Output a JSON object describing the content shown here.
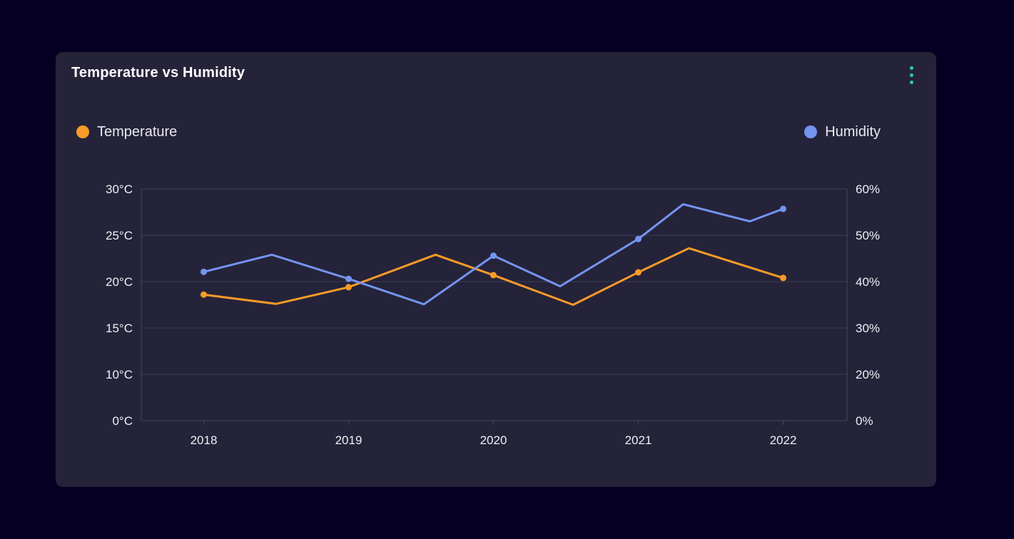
{
  "card": {
    "title": "Temperature vs Humidity",
    "menu_icon": "kebab-menu-icon"
  },
  "legend": {
    "items": [
      {
        "label": "Temperature",
        "color": "#f89b28",
        "side": "left"
      },
      {
        "label": "Humidity",
        "color": "#7494f0",
        "side": "right"
      }
    ]
  },
  "chart_data": {
    "type": "line",
    "title": "Temperature vs Humidity",
    "grid": true,
    "legend_position": "top",
    "x_axis": {
      "tick_labels": [
        "2018",
        "2019",
        "2020",
        "2021",
        "2022"
      ],
      "tick_values": [
        2018,
        2019,
        2020,
        2021,
        2022
      ],
      "min": 2018,
      "max": 2022
    },
    "y_axis_left": {
      "name": "Temperature",
      "unit": "°C",
      "tick_labels": [
        "30°C",
        "25°C",
        "20°C",
        "15°C",
        "10°C",
        "0°C"
      ],
      "tick_values": [
        30,
        25,
        20,
        15,
        10,
        0
      ]
    },
    "y_axis_right": {
      "name": "Humidity",
      "unit": "%",
      "tick_labels": [
        "60%",
        "50%",
        "40%",
        "30%",
        "20%",
        "0%"
      ],
      "tick_values": [
        60,
        50,
        40,
        30,
        20,
        0
      ]
    },
    "series": [
      {
        "name": "Temperature",
        "axis": "left",
        "color": "#f89b28",
        "points": [
          {
            "x": 2018,
            "y": 18.6,
            "dot": true
          },
          {
            "x": 2018.5,
            "y": 17.6
          },
          {
            "x": 2019,
            "y": 19.4,
            "dot": true
          },
          {
            "x": 2019.6,
            "y": 22.9
          },
          {
            "x": 2020,
            "y": 20.7,
            "dot": true
          },
          {
            "x": 2020.55,
            "y": 17.5
          },
          {
            "x": 2021,
            "y": 21.0,
            "dot": true
          },
          {
            "x": 2021.35,
            "y": 23.6
          },
          {
            "x": 2022,
            "y": 20.4,
            "dot": true
          }
        ]
      },
      {
        "name": "Humidity",
        "axis": "right",
        "color": "#7494f0",
        "points": [
          {
            "x": 2018,
            "y": 42.1,
            "dot": true
          },
          {
            "x": 2018.47,
            "y": 45.8
          },
          {
            "x": 2019,
            "y": 40.6,
            "dot": true
          },
          {
            "x": 2019.52,
            "y": 35.1
          },
          {
            "x": 2020,
            "y": 45.6,
            "dot": true
          },
          {
            "x": 2020.46,
            "y": 39.0
          },
          {
            "x": 2021,
            "y": 49.2,
            "dot": true
          },
          {
            "x": 2021.31,
            "y": 56.7
          },
          {
            "x": 2021.77,
            "y": 53.0
          },
          {
            "x": 2022,
            "y": 55.7,
            "dot": true
          }
        ]
      }
    ]
  },
  "colors": {
    "page_bg": "#050023",
    "card_bg": "#252339",
    "grid": "#3d3d57",
    "axis": "#46465f",
    "title_text": "#ffffff",
    "axis_text": "#eef0f8",
    "legend_text": "#e8e9f0",
    "accent_teal": "#2bc8c0",
    "temperature": "#f89b28",
    "humidity": "#7494f0"
  }
}
